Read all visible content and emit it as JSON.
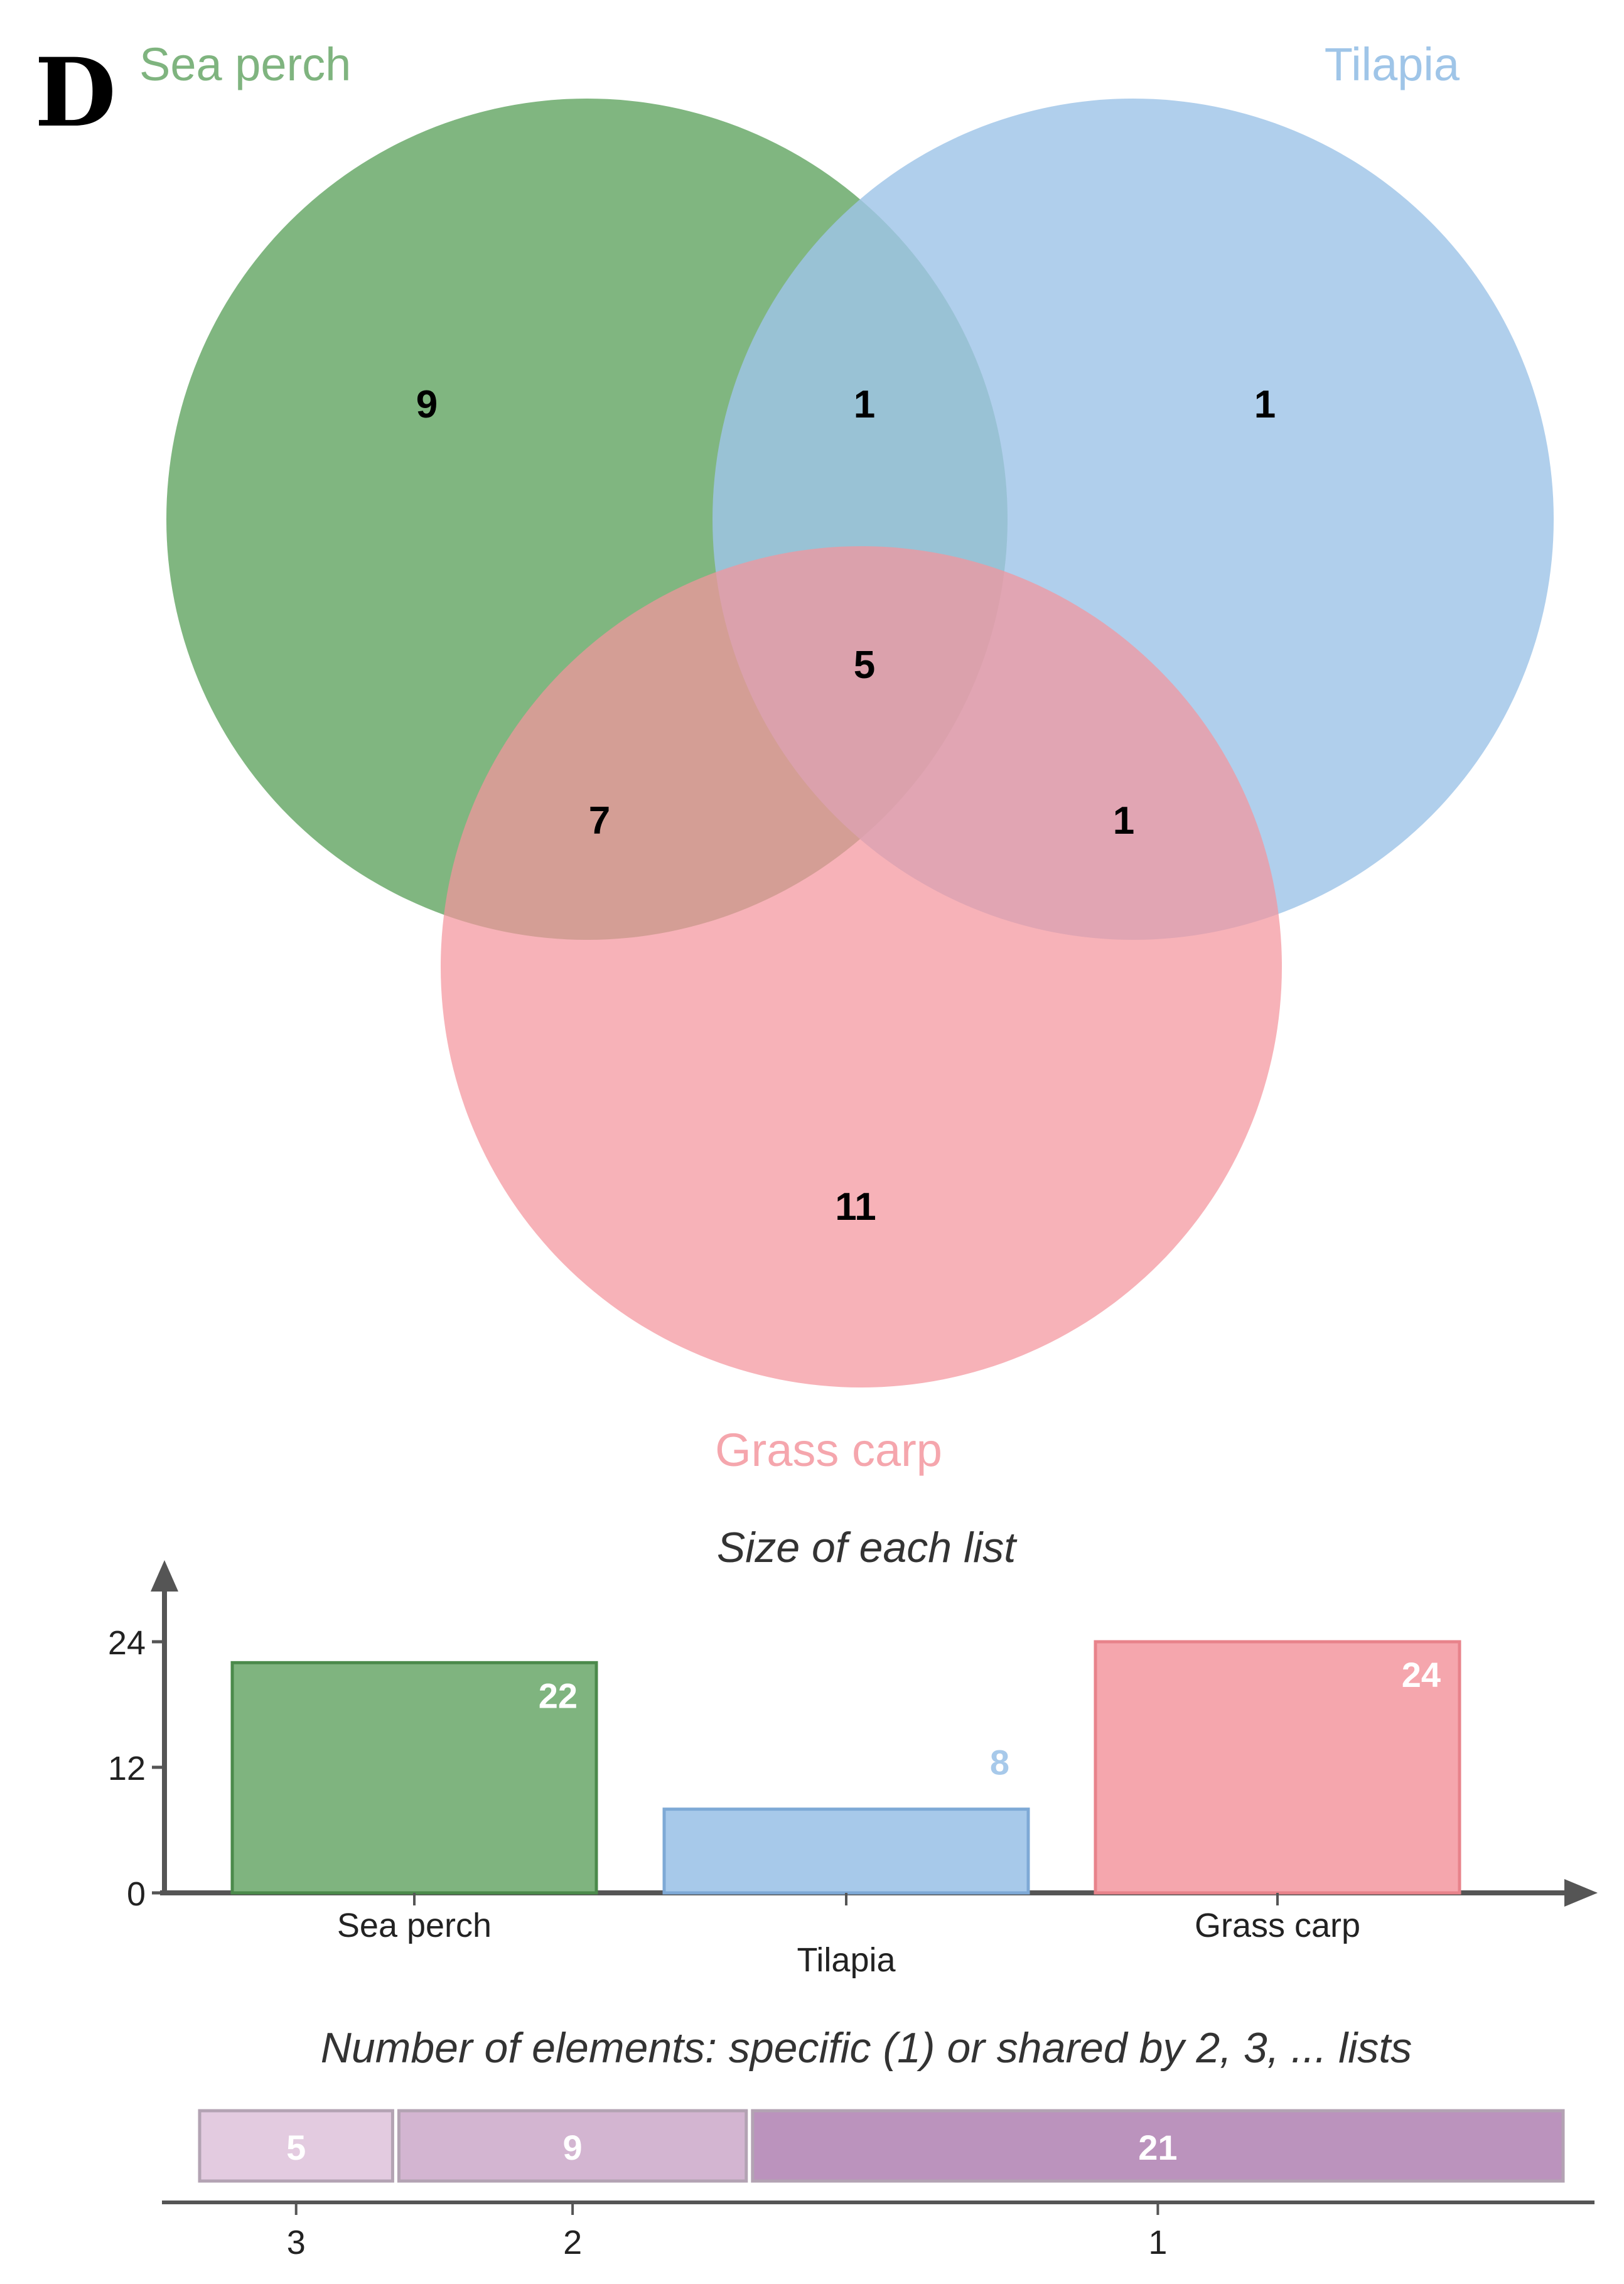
{
  "panel_label": "D",
  "colors": {
    "sea_perch": "#6aa96a",
    "tilapia": "#9fc5e8",
    "grass_carp": "#f4949c",
    "bar_sea_perch": "#7fb47f",
    "bar_tilapia": "#a7c9ea",
    "bar_grass_carp": "#f5a6ad",
    "shared_3": "#e3cbe0",
    "shared_2": "#d3b5d1",
    "shared_1": "#bb93bd",
    "axis": "#555555"
  },
  "venn": {
    "set_labels": [
      "Sea perch",
      "Tilapia",
      "Grass carp"
    ],
    "regions": {
      "sea_perch_only": "9",
      "sea_perch_tilapia": "1",
      "tilapia_only": "1",
      "all_three": "5",
      "sea_perch_grass_carp": "7",
      "tilapia_grass_carp": "1",
      "grass_carp_only": "11"
    }
  },
  "chart_data": [
    {
      "type": "bar",
      "title": "Size of each list",
      "categories": [
        "Sea perch",
        "Tilapia",
        "Grass carp"
      ],
      "values": [
        22,
        8,
        24
      ],
      "yticks": [
        "0",
        "12",
        "24"
      ],
      "ylim": [
        0,
        24
      ]
    },
    {
      "type": "bar",
      "orientation": "horizontal-stacked",
      "title": "Number of elements: specific (1) or shared by 2, 3, ... lists",
      "categories": [
        "3",
        "2",
        "1"
      ],
      "values": [
        5,
        9,
        21
      ]
    }
  ]
}
